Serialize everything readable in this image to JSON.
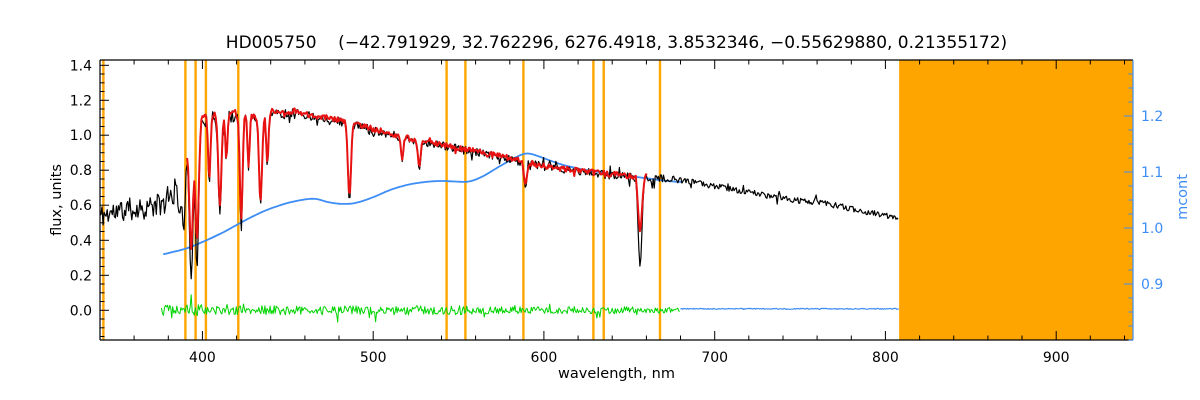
{
  "chart_data": {
    "type": "line",
    "title": "HD005750    (−42.791929, 32.762296, 6276.4918, 3.8532346, −0.55629880, 0.21355172)",
    "xlabel": "wavelength, nm",
    "ylabel_left": "flux, units",
    "ylabel_right": "mcont",
    "x_range": [
      340,
      945
    ],
    "y_left_range": [
      -0.17,
      1.43
    ],
    "y_right_range": [
      0.8,
      1.3
    ],
    "x_ticks": [
      400,
      500,
      600,
      700,
      800,
      900
    ],
    "x_tick_labels": [
      "400",
      "500",
      "600",
      "700",
      "800",
      "900"
    ],
    "x_minor_step": 20,
    "y_left_ticks": [
      0,
      0.2,
      0.4,
      0.6,
      0.8,
      1.0,
      1.2,
      1.4
    ],
    "y_left_tick_labels": [
      "0.0",
      "0.2",
      "0.4",
      "0.6",
      "0.8",
      "1.0",
      "1.2",
      "1.4"
    ],
    "y_left_minor_step": 0.05,
    "y_right_ticks": [
      0.9,
      1.0,
      1.1,
      1.2
    ],
    "y_right_tick_labels": [
      "0.9",
      "1.0",
      "1.1",
      "1.2"
    ],
    "y_right_minor_step": 0.025,
    "grid": false,
    "legend": "none",
    "colors": {
      "observed": "#000000",
      "model": "#e81212",
      "continuum": "#3d8df5",
      "residuals": "#00d400",
      "markers": "#ffa500",
      "masked": "#ffa500",
      "axis": "#000000",
      "right_axis": "#3d8df5",
      "background": "#ffffff"
    },
    "masked_region": {
      "from": 808,
      "to": 945
    },
    "marker_wavelengths": [
      342,
      390,
      396,
      402,
      421,
      543,
      554,
      588,
      629,
      635,
      668
    ],
    "absorption_lines": [
      {
        "c": 386.5,
        "w": 1.0,
        "obs": 0.55,
        "mod": 0.6
      },
      {
        "c": 389.0,
        "w": 0.9,
        "obs": 0.45,
        "mod": 0.55
      },
      {
        "c": 393.4,
        "w": 1.1,
        "obs": 0.18,
        "mod": 0.35
      },
      {
        "c": 396.8,
        "w": 1.0,
        "obs": 0.24,
        "mod": 0.4
      },
      {
        "c": 404.0,
        "w": 0.7,
        "obs": 0.72,
        "mod": 0.75
      },
      {
        "c": 410.2,
        "w": 0.9,
        "obs": 0.55,
        "mod": 0.6
      },
      {
        "c": 414.0,
        "w": 0.6,
        "obs": 0.85,
        "mod": 0.86
      },
      {
        "c": 422.7,
        "w": 0.8,
        "obs": 0.45,
        "mod": 0.52
      },
      {
        "c": 427.0,
        "w": 0.6,
        "obs": 0.8,
        "mod": 0.82
      },
      {
        "c": 434.0,
        "w": 0.9,
        "obs": 0.6,
        "mod": 0.62
      },
      {
        "c": 438.0,
        "w": 0.7,
        "obs": 0.82,
        "mod": 0.84
      },
      {
        "c": 486.1,
        "w": 0.9,
        "obs": 0.62,
        "mod": 0.65
      },
      {
        "c": 517.0,
        "w": 0.7,
        "obs": 0.85,
        "mod": 0.86
      },
      {
        "c": 527.0,
        "w": 0.8,
        "obs": 0.8,
        "mod": 0.82
      },
      {
        "c": 589.2,
        "w": 0.9,
        "obs": 0.7,
        "mod": 0.72
      },
      {
        "c": 656.3,
        "w": 1.1,
        "obs": 0.25,
        "mod": 0.45
      }
    ],
    "series": [
      {
        "name": "residuals",
        "color_key": "residuals",
        "axis": "left",
        "range": [
          376,
          680
        ],
        "width": 1,
        "seed": 5,
        "spike_prob": 0.05,
        "spike_mult": 2.6,
        "noise": [
          {
            "from": 376,
            "to": 400,
            "amp": 0.034
          },
          {
            "from": 400,
            "to": 560,
            "amp": 0.026
          },
          {
            "from": 560,
            "to": 680,
            "amp": 0.02
          }
        ],
        "anchors": [
          [
            376,
            0
          ],
          [
            680,
            0
          ]
        ]
      },
      {
        "name": "zero_continuation",
        "color_key": "continuum",
        "axis": "left",
        "range": [
          680,
          808
        ],
        "width": 1.2,
        "seed": 9,
        "noise": [
          {
            "from": 680,
            "to": 808,
            "amp": 0.003
          }
        ],
        "anchors": [
          [
            680,
            0.008
          ],
          [
            808,
            0.008
          ]
        ]
      },
      {
        "name": "continuum_mcont",
        "color_key": "continuum",
        "axis": "right",
        "range": [
          377,
          681
        ],
        "width": 1.8,
        "smooth": true,
        "anchors": [
          [
            377,
            0.953
          ],
          [
            390,
            0.963
          ],
          [
            400,
            0.975
          ],
          [
            412,
            0.992
          ],
          [
            424,
            1.012
          ],
          [
            436,
            1.03
          ],
          [
            448,
            1.043
          ],
          [
            458,
            1.05
          ],
          [
            466,
            1.052
          ],
          [
            474,
            1.046
          ],
          [
            482,
            1.043
          ],
          [
            490,
            1.045
          ],
          [
            500,
            1.055
          ],
          [
            510,
            1.068
          ],
          [
            520,
            1.077
          ],
          [
            530,
            1.082
          ],
          [
            540,
            1.084
          ],
          [
            548,
            1.083
          ],
          [
            556,
            1.083
          ],
          [
            564,
            1.092
          ],
          [
            574,
            1.11
          ],
          [
            584,
            1.127
          ],
          [
            590,
            1.133
          ],
          [
            596,
            1.129
          ],
          [
            604,
            1.12
          ],
          [
            612,
            1.112
          ],
          [
            622,
            1.105
          ],
          [
            632,
            1.1
          ],
          [
            642,
            1.096
          ],
          [
            652,
            1.092
          ],
          [
            662,
            1.088
          ],
          [
            672,
            1.084
          ],
          [
            681,
            1.082
          ]
        ]
      },
      {
        "name": "observed_flux",
        "color_key": "observed",
        "axis": "left",
        "range": [
          340,
          808
        ],
        "width": 1.2,
        "seed": 11,
        "bias": "down",
        "spike_prob": 0.05,
        "spike_mult": 2.4,
        "dip_key": "obs",
        "noise": [
          {
            "from": 340,
            "to": 386,
            "amp": 0.045
          },
          {
            "from": 386,
            "to": 420,
            "amp": 0.03
          },
          {
            "from": 420,
            "to": 680,
            "amp": 0.016
          },
          {
            "from": 680,
            "to": 808,
            "amp": 0.011
          }
        ],
        "anchors": [
          [
            340,
            0.58
          ],
          [
            348,
            0.6
          ],
          [
            356,
            0.615
          ],
          [
            364,
            0.625
          ],
          [
            372,
            0.635
          ],
          [
            378,
            0.65
          ],
          [
            383,
            0.7
          ],
          [
            388,
            0.88
          ],
          [
            392,
            1.0
          ],
          [
            396,
            1.08
          ],
          [
            400,
            1.12
          ],
          [
            406,
            1.13
          ],
          [
            412,
            1.12
          ],
          [
            418,
            1.14
          ],
          [
            424,
            1.13
          ],
          [
            430,
            1.12
          ],
          [
            436,
            1.14
          ],
          [
            442,
            1.15
          ],
          [
            448,
            1.13
          ],
          [
            454,
            1.15
          ],
          [
            460,
            1.13
          ],
          [
            466,
            1.12
          ],
          [
            472,
            1.11
          ],
          [
            478,
            1.1
          ],
          [
            484,
            1.085
          ],
          [
            490,
            1.07
          ],
          [
            496,
            1.055
          ],
          [
            502,
            1.04
          ],
          [
            508,
            1.025
          ],
          [
            514,
            1.01
          ],
          [
            520,
            0.995
          ],
          [
            526,
            0.985
          ],
          [
            532,
            0.972
          ],
          [
            538,
            0.96
          ],
          [
            544,
            0.948
          ],
          [
            550,
            0.936
          ],
          [
            556,
            0.924
          ],
          [
            562,
            0.912
          ],
          [
            568,
            0.9
          ],
          [
            574,
            0.89
          ],
          [
            580,
            0.878
          ],
          [
            586,
            0.864
          ],
          [
            592,
            0.85
          ],
          [
            598,
            0.838
          ],
          [
            604,
            0.828
          ],
          [
            610,
            0.82
          ],
          [
            616,
            0.812
          ],
          [
            622,
            0.805
          ],
          [
            628,
            0.798
          ],
          [
            634,
            0.792
          ],
          [
            640,
            0.787
          ],
          [
            646,
            0.782
          ],
          [
            652,
            0.778
          ],
          [
            658,
            0.774
          ],
          [
            664,
            0.77
          ],
          [
            670,
            0.764
          ],
          [
            676,
            0.757
          ],
          [
            682,
            0.749
          ],
          [
            690,
            0.737
          ],
          [
            698,
            0.723
          ],
          [
            706,
            0.709
          ],
          [
            714,
            0.695
          ],
          [
            722,
            0.681
          ],
          [
            730,
            0.667
          ],
          [
            738,
            0.653
          ],
          [
            746,
            0.64
          ],
          [
            752,
            0.632
          ],
          [
            757,
            0.627
          ],
          [
            759,
            0.66
          ],
          [
            761,
            0.628
          ],
          [
            768,
            0.614
          ],
          [
            776,
            0.598
          ],
          [
            784,
            0.582
          ],
          [
            792,
            0.566
          ],
          [
            800,
            0.55
          ],
          [
            808,
            0.538
          ]
        ]
      },
      {
        "name": "model_fit",
        "color_key": "model",
        "axis": "left",
        "range": [
          391,
          661
        ],
        "width": 2,
        "seed": 77,
        "bias": "down",
        "spike_prob": 0.04,
        "spike_mult": 2,
        "dip_key": "mod",
        "follows": "observed_flux",
        "noise": [
          {
            "from": 340,
            "to": 808,
            "amp": 0.011
          }
        ]
      }
    ]
  }
}
